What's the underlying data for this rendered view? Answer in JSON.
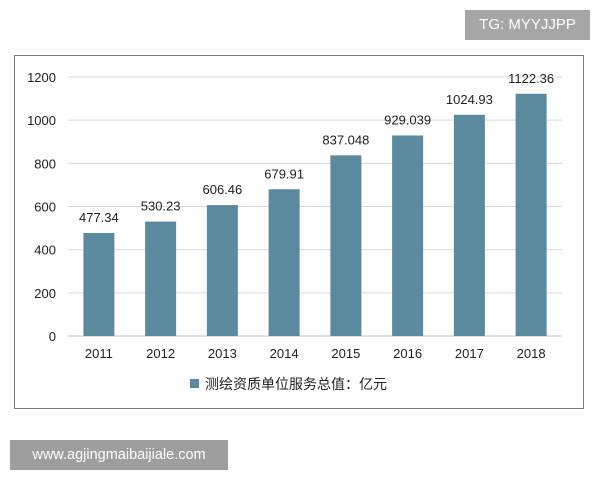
{
  "tag": {
    "text": "TG: MYYJJPP"
  },
  "watermark": {
    "text": "www.agjingmaibaijiale.com"
  },
  "chart_data": {
    "type": "bar",
    "categories": [
      "2011",
      "2012",
      "2013",
      "2014",
      "2015",
      "2016",
      "2017",
      "2018"
    ],
    "series": [
      {
        "name": "测绘资质单位服务总值：亿元",
        "values": [
          477.34,
          530.23,
          606.46,
          679.91,
          837.048,
          929.039,
          1024.93,
          1122.36
        ],
        "labels": [
          "477.34",
          "530.23",
          "606.46",
          "679.91",
          "837.048",
          "929.039",
          "1024.93",
          "1122.36"
        ],
        "color": "#5b8a9e"
      }
    ],
    "yticks": [
      "0",
      "200",
      "400",
      "600",
      "800",
      "1000",
      "1200"
    ],
    "ylim": [
      0,
      1200
    ],
    "grid": true,
    "legend": "bottom"
  }
}
